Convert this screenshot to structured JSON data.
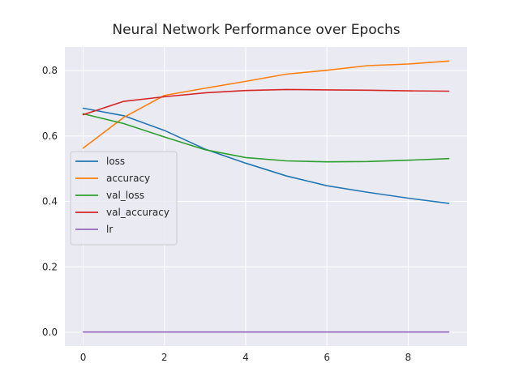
{
  "chart_data": {
    "type": "line",
    "title": "Neural Network Performance over Epochs",
    "xlabel": "",
    "ylabel": "",
    "x": [
      0,
      1,
      2,
      3,
      4,
      5,
      6,
      7,
      8,
      9
    ],
    "xlim": [
      -0.45,
      9.45
    ],
    "ylim": [
      -0.042,
      0.872
    ],
    "xticks": [
      0,
      2,
      4,
      6,
      8
    ],
    "xtick_labels": [
      "0",
      "2",
      "4",
      "6",
      "8"
    ],
    "yticks": [
      0.0,
      0.2,
      0.4,
      0.6,
      0.8
    ],
    "ytick_labels": [
      "0.0",
      "0.2",
      "0.4",
      "0.6",
      "0.8"
    ],
    "grid": true,
    "style": "seaborn darkgrid",
    "legend_position": "center-left",
    "series": [
      {
        "name": "loss",
        "color": "#1f77b4",
        "values": [
          0.685,
          0.662,
          0.617,
          0.56,
          0.517,
          0.478,
          0.448,
          0.428,
          0.41,
          0.394
        ]
      },
      {
        "name": "accuracy",
        "color": "#ff7f0e",
        "values": [
          0.563,
          0.657,
          0.724,
          0.746,
          0.767,
          0.789,
          0.801,
          0.815,
          0.82,
          0.829
        ]
      },
      {
        "name": "val_loss",
        "color": "#2ca02c",
        "values": [
          0.668,
          0.638,
          0.597,
          0.558,
          0.534,
          0.524,
          0.521,
          0.522,
          0.526,
          0.531
        ]
      },
      {
        "name": "val_accuracy",
        "color": "#d62728",
        "values": [
          0.665,
          0.706,
          0.72,
          0.732,
          0.739,
          0.742,
          0.741,
          0.74,
          0.738,
          0.737
        ]
      },
      {
        "name": "lr",
        "color": "#9467bd",
        "values": [
          0.001,
          0.001,
          0.001,
          0.001,
          0.001,
          0.001,
          0.001,
          0.001,
          0.001,
          0.001
        ]
      }
    ]
  }
}
